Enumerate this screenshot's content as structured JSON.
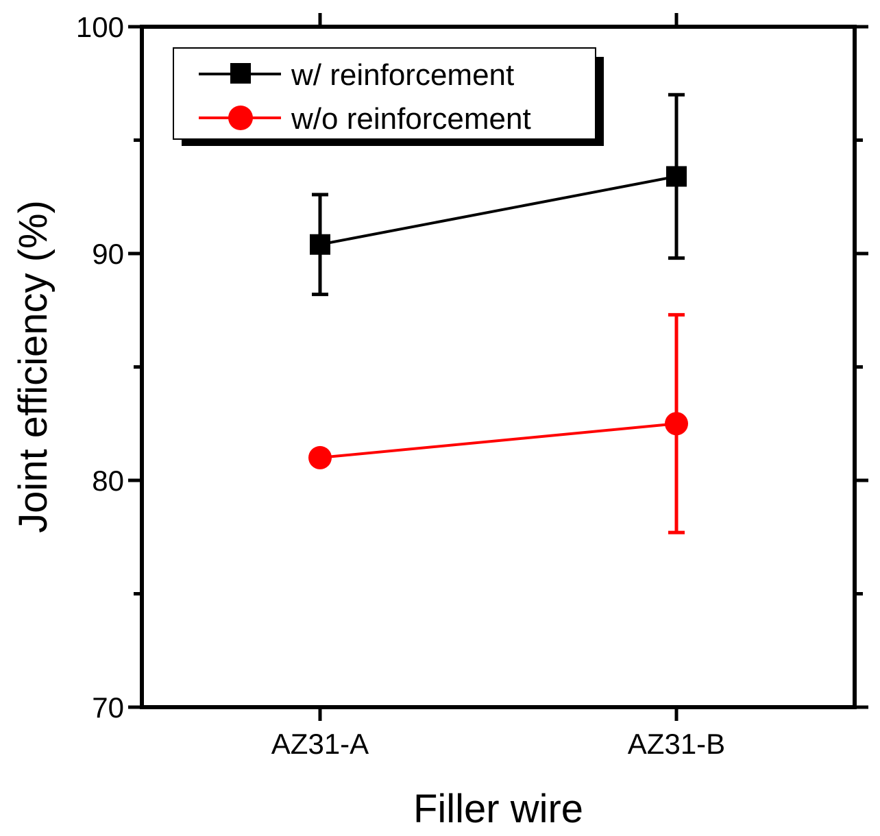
{
  "chart_data": {
    "type": "line",
    "title": "",
    "xlabel": "Filler wire",
    "ylabel": "Joint efficiency (%)",
    "categories": [
      "AZ31-A",
      "AZ31-B"
    ],
    "ylim": [
      70,
      100
    ],
    "yticks": [
      70,
      80,
      90,
      100
    ],
    "yminor_step": 5,
    "grid": false,
    "legend_position": "top-left",
    "series": [
      {
        "name": "w/ reinforcement",
        "color": "#000000",
        "marker": "square",
        "values": [
          90.4,
          93.4
        ],
        "err_low": [
          88.2,
          89.8
        ],
        "err_high": [
          92.6,
          97.0
        ]
      },
      {
        "name": "w/o reinforcement",
        "color": "#ff0000",
        "marker": "circle",
        "values": [
          81.0,
          82.5
        ],
        "err_low": [
          81.0,
          77.7
        ],
        "err_high": [
          81.0,
          87.3
        ]
      }
    ]
  }
}
